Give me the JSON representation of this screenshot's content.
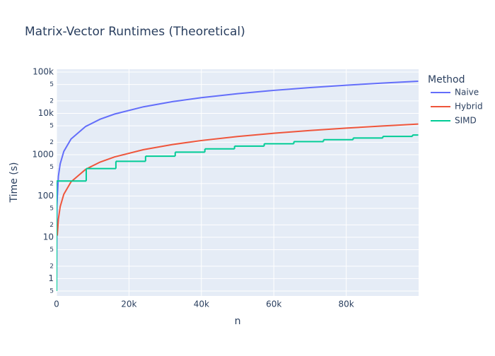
{
  "chart_data": {
    "type": "line",
    "title": "Matrix-Vector Runtimes (Theoretical)",
    "x_label": "n",
    "y_label": "Time (s)",
    "legend_title": "Method",
    "legend_position": "right",
    "y_scale": "log",
    "grid": true,
    "background": "#e5ecf6",
    "xlim": [
      0,
      100000
    ],
    "xticks": [
      0,
      {
        "value": 20000,
        "label": "20k"
      },
      {
        "value": 40000,
        "label": "40k"
      },
      {
        "value": 60000,
        "label": "60k"
      },
      {
        "value": 80000,
        "label": "80k"
      }
    ],
    "ylim": [
      0.38,
      117000
    ],
    "yticks": [
      {
        "value": 100000,
        "label": "100k"
      },
      {
        "value": 50000,
        "label": "5"
      },
      {
        "value": 20000,
        "label": "2"
      },
      {
        "value": 10000,
        "label": "10k"
      },
      {
        "value": 5000,
        "label": "5"
      },
      {
        "value": 2000,
        "label": "2"
      },
      1000,
      {
        "value": 500,
        "label": "5"
      },
      {
        "value": 200,
        "label": "2"
      },
      100,
      {
        "value": 50,
        "label": "5"
      },
      {
        "value": 20,
        "label": "2"
      },
      10,
      5,
      2,
      1,
      {
        "value": 0.5,
        "label": "5"
      }
    ],
    "series": [
      {
        "name": "Naive",
        "color": "#636efa",
        "line_shape": "linear",
        "x": [
          1,
          100,
          500,
          1000,
          2000,
          4000,
          8000,
          12000,
          16000,
          24000,
          32000,
          40000,
          50000,
          60000,
          70000,
          80000,
          90000,
          99900
        ],
        "values": [
          0.6,
          60,
          300,
          600,
          1200,
          2400,
          4800,
          7200,
          9600,
          14400,
          19200,
          24000,
          30000,
          36000,
          42000,
          48000,
          54000,
          59940
        ]
      },
      {
        "name": "Hybrid",
        "color": "#EF553B",
        "line_shape": "linear",
        "x": [
          200,
          500,
          1000,
          2000,
          4000,
          8000,
          12000,
          16000,
          24000,
          32000,
          40000,
          50000,
          60000,
          70000,
          80000,
          90000,
          99900
        ],
        "values": [
          11,
          27.5,
          55,
          110,
          220,
          440,
          660,
          880,
          1320,
          1760,
          2200,
          2750,
          3300,
          3850,
          4400,
          4950,
          5494.5
        ]
      },
      {
        "name": "SIMD",
        "color": "#00cc96",
        "line_shape": "hv",
        "x": [
          0,
          1,
          8192,
          16384,
          24576,
          32768,
          40960,
          49152,
          57344,
          65536,
          73728,
          81920,
          90112,
          98304,
          99900
        ],
        "values": [
          0.5,
          230,
          460,
          690,
          920,
          1150,
          1380,
          1610,
          1840,
          2070,
          2300,
          2530,
          2760,
          2990,
          2990
        ]
      }
    ]
  }
}
